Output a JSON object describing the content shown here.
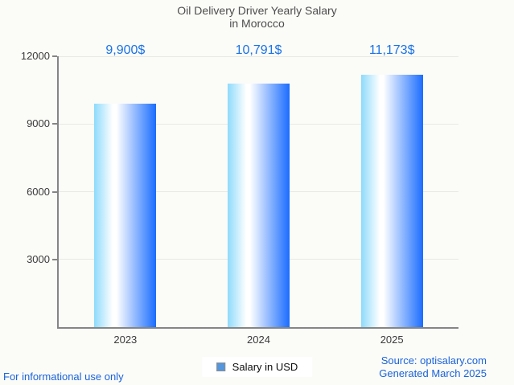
{
  "title": {
    "line1": "Oil Delivery Driver Yearly Salary",
    "line2": "in Morocco"
  },
  "chart_data": {
    "type": "bar",
    "title": "Oil Delivery Driver Yearly Salary in Morocco",
    "categories": [
      "2023",
      "2024",
      "2025"
    ],
    "values": [
      9900,
      10791,
      11173
    ],
    "value_labels": [
      "9,900$",
      "10,791$",
      "11,173$"
    ],
    "series": [
      {
        "name": "Salary in USD",
        "values": [
          9900,
          10791,
          11173
        ]
      }
    ],
    "xlabel": "",
    "ylabel": "",
    "ylim": [
      0,
      12000
    ],
    "yticks": [
      3000,
      6000,
      9000,
      12000
    ],
    "ytick_labels": [
      "3000",
      "6000",
      "9000",
      "12000"
    ],
    "grid": true,
    "legend_position": "bottom-center",
    "colors": {
      "bar_gradient_left": "#8edafb",
      "bar_gradient_mid": "#ffffff",
      "bar_gradient_right": "#1a6dff",
      "value_label": "#1a73e8",
      "gridline": "#e8e8e4",
      "axis": "#858585",
      "background": "#fbfbf8"
    }
  },
  "legend": {
    "label": "Salary in USD",
    "marker_color": "#5596dd"
  },
  "footer": {
    "left_note": "For informational use only",
    "source_line1": "Source: optisalary.com",
    "source_line2": "Generated March 2025",
    "link_color": "#1a63da"
  }
}
